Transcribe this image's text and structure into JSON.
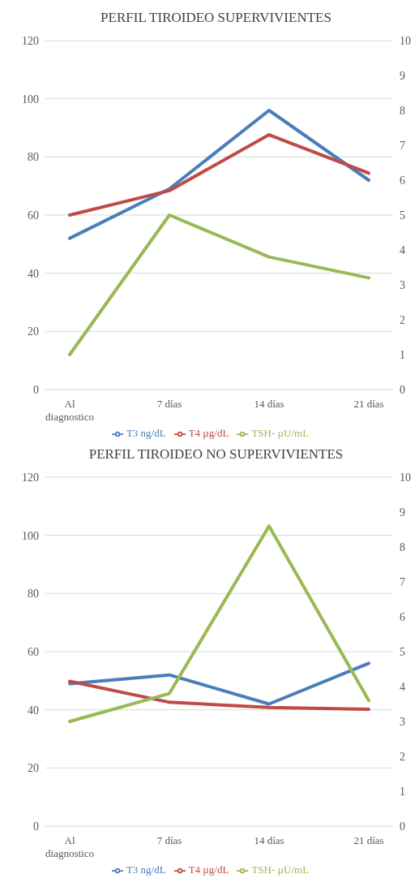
{
  "chart_data": [
    {
      "type": "line",
      "title": "PERFIL TIROIDEO SUPERVIVIENTES",
      "categories": [
        "Al diagnostico",
        "7 días",
        "14 días",
        "21 días"
      ],
      "series": [
        {
          "name": "T3 ng/dL",
          "color": "#4a7ebb",
          "values": [
            52,
            69,
            96,
            72
          ]
        },
        {
          "name": "T4 µg/dL",
          "color": "#be4b48",
          "axis": "y2",
          "values": [
            5.0,
            5.7,
            7.3,
            6.2
          ]
        },
        {
          "name": "TSH- µU/mL",
          "color": "#98b954",
          "axis": "y2",
          "values": [
            1.0,
            5.0,
            3.8,
            3.2
          ]
        }
      ],
      "ylim": [
        0,
        120
      ],
      "yticks": [
        0,
        20,
        40,
        60,
        80,
        100,
        120
      ],
      "y2lim": [
        0,
        10
      ],
      "y2ticks": [
        0,
        1,
        2,
        3,
        4,
        5,
        6,
        7,
        8,
        9,
        10
      ],
      "grid": "y",
      "legend": "bottom",
      "marker": "none",
      "line_style": "solid"
    },
    {
      "type": "line",
      "title": "PERFIL TIROIDEO NO SUPERVIVIENTES",
      "categories": [
        "Al diagnostico",
        "7 días",
        "14 días",
        "21 días"
      ],
      "series": [
        {
          "name": "T3 ng/dL",
          "color": "#4a7ebb",
          "values": [
            49,
            52,
            42,
            56
          ]
        },
        {
          "name": "T4 µg/dL",
          "color": "#be4b48",
          "axis": "y2",
          "values": [
            4.15,
            3.55,
            3.4,
            3.35
          ]
        },
        {
          "name": "TSH- µU/mL",
          "color": "#98b954",
          "axis": "y2",
          "values": [
            3.0,
            3.8,
            8.6,
            3.6
          ]
        }
      ],
      "ylim": [
        0,
        120
      ],
      "yticks": [
        0,
        20,
        40,
        60,
        80,
        100,
        120
      ],
      "y2lim": [
        0,
        10
      ],
      "y2ticks": [
        0,
        1,
        2,
        3,
        4,
        5,
        6,
        7,
        8,
        9,
        10
      ],
      "grid": "y",
      "legend": "bottom",
      "marker": "none",
      "line_style": "solid"
    }
  ]
}
